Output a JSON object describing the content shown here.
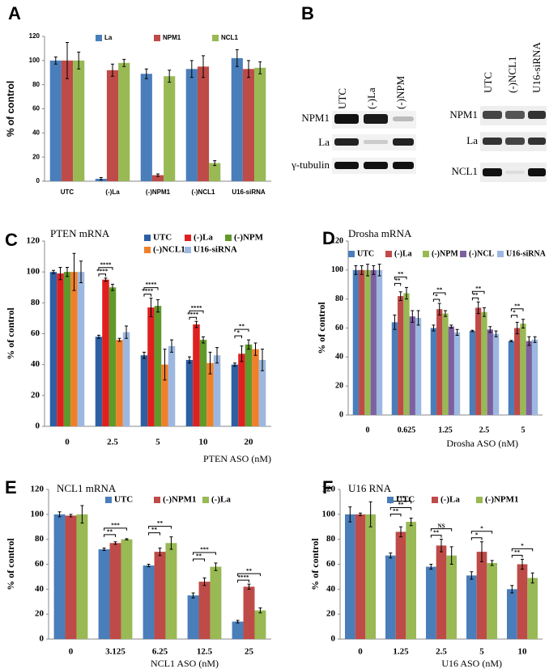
{
  "chart_data": [
    {
      "type": "bar",
      "panel_label": "A",
      "ylabel": "% of control",
      "categories": [
        "UTC",
        "(-)La",
        "(-)NPM1",
        "(-)NCL1",
        "U16-siRNA"
      ],
      "series": [
        {
          "name": "La",
          "color": "#4a7ebb",
          "values": [
            100,
            2,
            89,
            93,
            102
          ],
          "errors": [
            3,
            1,
            4,
            7,
            7
          ]
        },
        {
          "name": "NPM1",
          "color": "#be4b48",
          "values": [
            100,
            92,
            5,
            95,
            93
          ],
          "errors": [
            15,
            5,
            1,
            9,
            7
          ]
        },
        {
          "name": "NCL1",
          "color": "#98b954",
          "values": [
            100,
            98,
            87,
            15,
            94
          ],
          "errors": [
            7,
            3,
            5,
            2,
            5
          ]
        }
      ],
      "ylim": [
        0,
        120
      ],
      "yticks": [
        0,
        20,
        40,
        60,
        80,
        100,
        120
      ]
    },
    {
      "type": "bar",
      "panel_label": "C",
      "title": "PTEN mRNA",
      "ylabel": "% of control",
      "xlabel": "PTEN ASO (nM)",
      "categories": [
        "0",
        "2.5",
        "5",
        "10",
        "20"
      ],
      "series": [
        {
          "name": "UTC",
          "color": "#2e5fa3",
          "values": [
            100,
            58,
            46,
            43,
            40
          ],
          "errors": [
            1,
            1,
            2,
            2,
            1
          ]
        },
        {
          "name": "(-)La",
          "color": "#e01f1f",
          "values": [
            99,
            95,
            77,
            66,
            47
          ],
          "errors": [
            4,
            1,
            6,
            2,
            5
          ]
        },
        {
          "name": "(-)NPM",
          "color": "#5f9a2b",
          "values": [
            100,
            90,
            78,
            56,
            53
          ],
          "errors": [
            3,
            2,
            4,
            2,
            3
          ]
        },
        {
          "name": "(-)NCL1",
          "color": "#f07f2a",
          "values": [
            100,
            56,
            40,
            41,
            50
          ],
          "errors": [
            12,
            1,
            10,
            7,
            4
          ]
        },
        {
          "name": "U16-siRNA",
          "color": "#9db8e0",
          "values": [
            100,
            61,
            52,
            46,
            43
          ],
          "errors": [
            7,
            4,
            4,
            5,
            7
          ]
        }
      ],
      "significance": [
        [],
        [
          "****",
          "****"
        ],
        [
          "****",
          "****"
        ],
        [
          "****",
          "****"
        ],
        [
          "**",
          "*"
        ]
      ],
      "ylim": [
        0,
        120
      ],
      "yticks": [
        0,
        20,
        40,
        60,
        80,
        100,
        120
      ]
    },
    {
      "type": "bar",
      "panel_label": "D",
      "title": "Drosha mRNA",
      "ylabel": "% of control",
      "xlabel": "Drosha ASO (nM)",
      "categories": [
        "0",
        "0.625",
        "1.25",
        "2.5",
        "5"
      ],
      "series": [
        {
          "name": "UTC",
          "color": "#4a7ebb",
          "values": [
            100,
            64,
            60,
            58,
            51
          ],
          "errors": [
            3,
            5,
            2,
            0.5,
            0.5
          ]
        },
        {
          "name": "(-)La",
          "color": "#be4b48",
          "values": [
            100,
            82,
            73,
            74,
            60
          ],
          "errors": [
            3,
            3,
            4,
            4,
            4
          ]
        },
        {
          "name": "(-)NPM",
          "color": "#98b954",
          "values": [
            100,
            84,
            70,
            71,
            63
          ],
          "errors": [
            4,
            4,
            2,
            3,
            3
          ]
        },
        {
          "name": "(-)NCL",
          "color": "#7d60a0",
          "values": [
            100,
            68,
            61,
            59,
            51
          ],
          "errors": [
            3,
            4,
            1,
            2,
            3
          ]
        },
        {
          "name": "U16-siRNA",
          "color": "#9db8e0",
          "values": [
            100,
            67,
            57,
            56,
            52
          ],
          "errors": [
            4,
            5,
            2,
            2,
            2
          ]
        }
      ],
      "significance": [
        [],
        [
          "**",
          "**"
        ],
        [
          "**",
          "*"
        ],
        [
          "**",
          "**"
        ],
        [
          "**",
          "*"
        ]
      ],
      "ylim": [
        0,
        120
      ],
      "yticks": [
        0,
        20,
        40,
        60,
        80,
        100,
        120
      ]
    },
    {
      "type": "bar",
      "panel_label": "E",
      "title": "NCL1 mRNA",
      "ylabel": "% of control",
      "xlabel": "NCL1 ASO (nM)",
      "categories": [
        "0",
        "3.125",
        "6.25",
        "12.5",
        "25"
      ],
      "series": [
        {
          "name": "UTC",
          "color": "#4a7ebb",
          "values": [
            100,
            72,
            59,
            35,
            14
          ],
          "errors": [
            2,
            1,
            1,
            2,
            1
          ]
        },
        {
          "name": "(-)NPM1",
          "color": "#be4b48",
          "values": [
            99,
            77,
            70,
            46,
            42
          ],
          "errors": [
            1,
            1,
            3,
            3,
            2
          ]
        },
        {
          "name": "(-)La",
          "color": "#98b954",
          "values": [
            100,
            80,
            77,
            58,
            23
          ],
          "errors": [
            7,
            0.5,
            5,
            3,
            2
          ]
        }
      ],
      "significance": [
        [],
        [
          "***",
          "**"
        ],
        [
          "**",
          "**"
        ],
        [
          "***",
          "**"
        ],
        [
          "**",
          "****"
        ]
      ],
      "ylim": [
        0,
        120
      ],
      "yticks": [
        0,
        20,
        40,
        60,
        80,
        100,
        120
      ]
    },
    {
      "type": "bar",
      "panel_label": "F",
      "title": "U16 RNA",
      "ylabel": "% of control",
      "xlabel": "U16  ASO (nM)",
      "categories": [
        "0",
        "1.25",
        "2.5",
        "5",
        "10"
      ],
      "series": [
        {
          "name": "UTC",
          "color": "#4a7ebb",
          "values": [
            100,
            67,
            58,
            51,
            40
          ],
          "errors": [
            6,
            2,
            2,
            3,
            3
          ]
        },
        {
          "name": "(-)La",
          "color": "#be4b48",
          "values": [
            100,
            86,
            75,
            70,
            60
          ],
          "errors": [
            1,
            4,
            5,
            8,
            4
          ]
        },
        {
          "name": "(-)NPM1",
          "color": "#98b954",
          "values": [
            100,
            94,
            67,
            61,
            49
          ],
          "errors": [
            10,
            3,
            7,
            2,
            4
          ]
        }
      ],
      "significance": [
        [],
        [
          "***",
          "**",
          "**"
        ],
        [
          "NS",
          "**"
        ],
        [
          "*",
          "*"
        ],
        [
          "*",
          "**"
        ]
      ],
      "ylim": [
        0,
        120
      ],
      "yticks": [
        0,
        20,
        40,
        60,
        80,
        100,
        120
      ]
    }
  ],
  "blot": {
    "panel_label": "B",
    "left": {
      "lanes": [
        "UTC",
        "(-)La",
        "(-)NPM"
      ],
      "rows": [
        "NPM1",
        "La",
        "γ-tubulin"
      ]
    },
    "right": {
      "lanes": [
        "UTC",
        "(-)NCL1",
        "U16-siRNA"
      ],
      "rows": [
        "NPM1",
        "La",
        "NCL1"
      ]
    }
  }
}
